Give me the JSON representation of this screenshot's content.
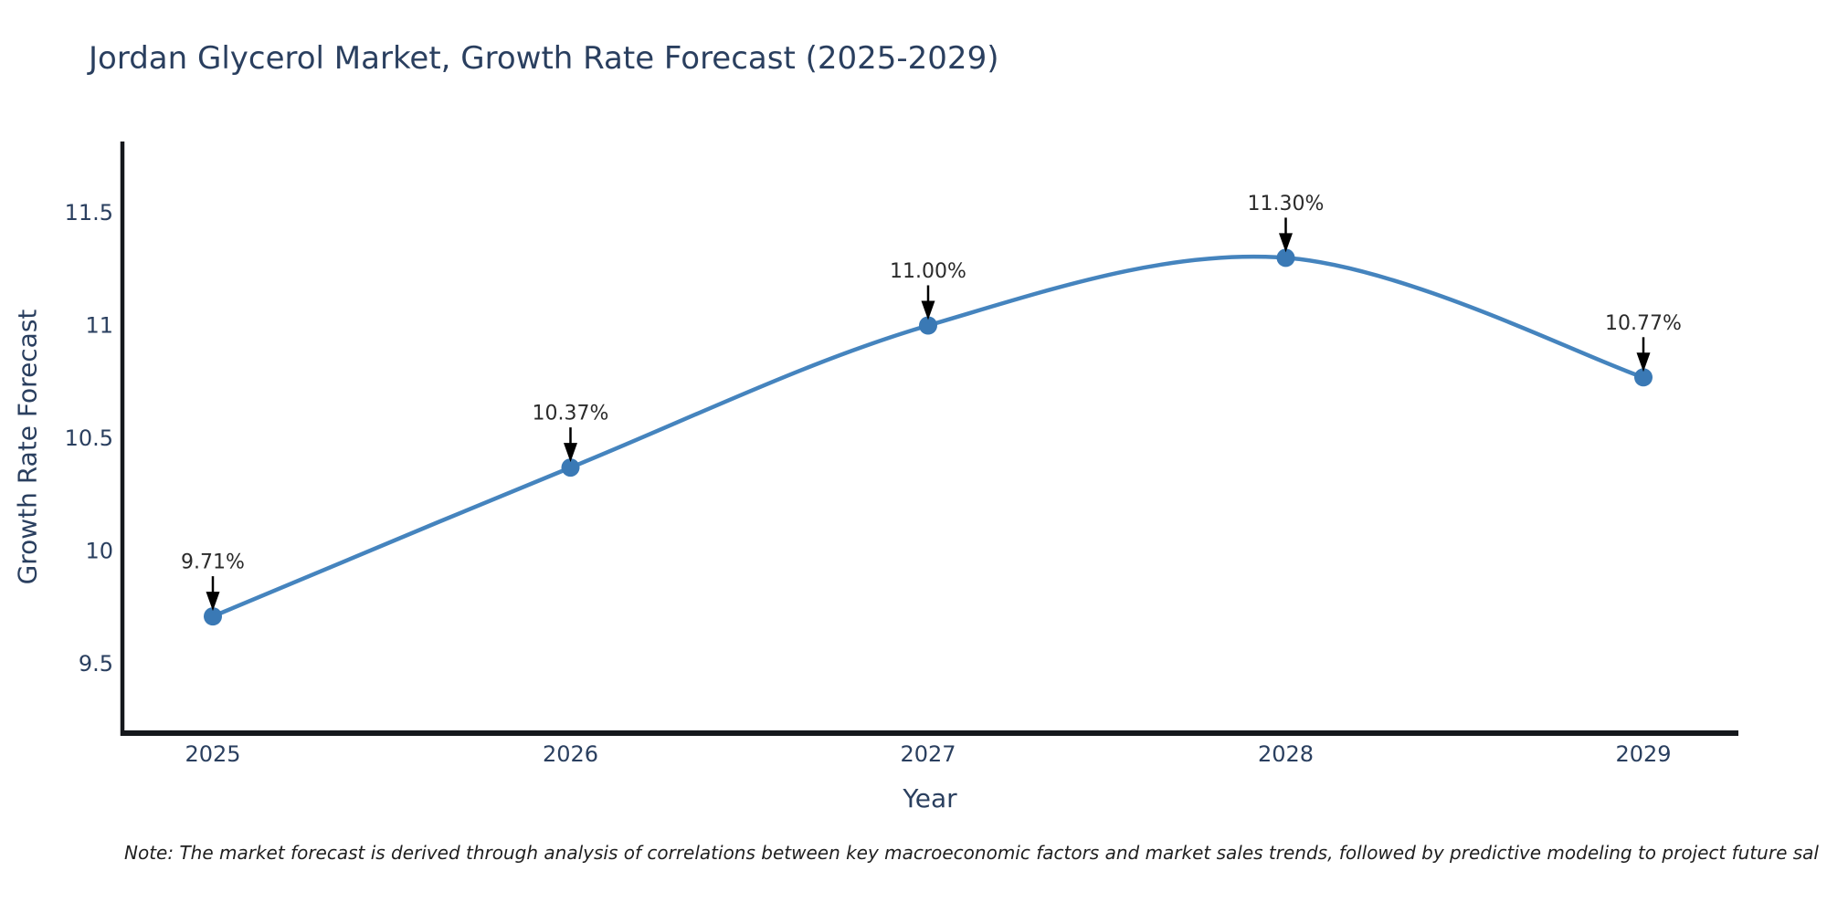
{
  "title": "Jordan Glycerol Market, Growth Rate Forecast (2025-2029)",
  "note": "Note: The market forecast is derived through analysis of correlations between key macroeconomic factors and market sales trends, followed by predictive modeling to project future sal",
  "chart_data": {
    "type": "line",
    "title": "Jordan Glycerol Market, Growth Rate Forecast (2025-2029)",
    "xlabel": "Year",
    "ylabel": "Growth Rate Forecast",
    "x": [
      2025,
      2026,
      2027,
      2028,
      2029
    ],
    "xtick_labels": [
      "2025",
      "2026",
      "2027",
      "2028",
      "2029"
    ],
    "series": [
      {
        "name": "Growth Rate Forecast",
        "values": [
          9.71,
          10.37,
          11.0,
          11.3,
          10.77
        ]
      }
    ],
    "point_labels": [
      "9.71%",
      "10.37%",
      "11.00%",
      "11.30%",
      "10.77%"
    ],
    "yticks": [
      11.5,
      11.0,
      10.5,
      10.0,
      9.5
    ],
    "ytick_labels": [
      "11.5",
      "11",
      "10.5",
      "10",
      "9.5"
    ],
    "ylim": [
      9.2,
      11.8
    ],
    "grid": false,
    "legend": "none",
    "line_shape": "spline",
    "marker": "circle",
    "annotations_arrow": true
  },
  "colors": {
    "background": "#ffffff",
    "line": "#4584be",
    "marker": "#3a79b5",
    "axis": "#15181c",
    "text": "#2a3f5f",
    "annotation": "#2b2b2b",
    "arrow": "#000000",
    "note": "#1f1f1f"
  }
}
